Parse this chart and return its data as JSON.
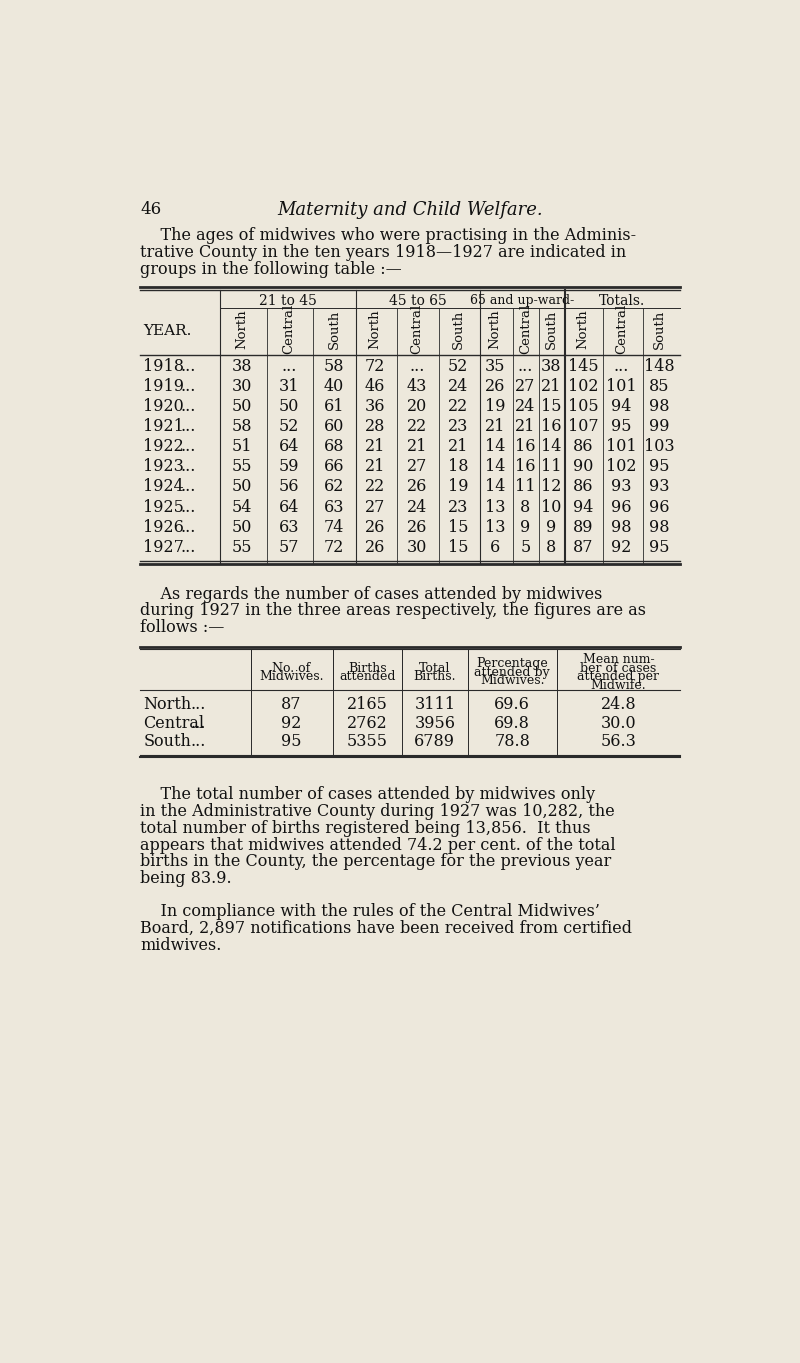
{
  "bg_color": "#ede8dc",
  "page_number": "46",
  "page_title": "Maternity and Child Welfare.",
  "intro_text_lines": [
    "    The ages of midwives who were practising in the Adminis-",
    "trative County in the ten years 1918—1927 are indicated in",
    "groups in the following table :—"
  ],
  "table1_group_headers": [
    "21 to 45",
    "45 to 65",
    "65 and up-ward-",
    "Totals."
  ],
  "table1_sub_headers": [
    "North",
    "Central",
    "South",
    "North",
    "Central",
    "South",
    "North",
    "Central",
    "South",
    "North",
    "Central",
    "South"
  ],
  "table1_rows": [
    [
      "1918",
      "...",
      "38",
      "...",
      "58",
      "72",
      "...",
      "52",
      "35",
      "...",
      "38",
      "145",
      "...",
      "148"
    ],
    [
      "1919",
      "...",
      "30",
      "31",
      "40",
      "46",
      "43",
      "24",
      "26",
      "27",
      "21",
      "102",
      "101",
      "85"
    ],
    [
      "1920",
      "...",
      "50",
      "50",
      "61",
      "36",
      "20",
      "22",
      "19",
      "24",
      "15",
      "105",
      "94",
      "98"
    ],
    [
      "1921",
      "...",
      "58",
      "52",
      "60",
      "28",
      "22",
      "23",
      "21",
      "21",
      "16",
      "107",
      "95",
      "99"
    ],
    [
      "1922",
      "...",
      "51",
      "64",
      "68",
      "21",
      "21",
      "21",
      "14",
      "16",
      "14",
      "86",
      "101",
      "103"
    ],
    [
      "1923",
      "...",
      "55",
      "59",
      "66",
      "21",
      "27",
      "18",
      "14",
      "16",
      "11",
      "90",
      "102",
      "95"
    ],
    [
      "1924",
      "...",
      "50",
      "56",
      "62",
      "22",
      "26",
      "19",
      "14",
      "11",
      "12",
      "86",
      "93",
      "93"
    ],
    [
      "1925",
      "...",
      "54",
      "64",
      "63",
      "27",
      "24",
      "23",
      "13",
      "8",
      "10",
      "94",
      "96",
      "96"
    ],
    [
      "1926",
      "...",
      "50",
      "63",
      "74",
      "26",
      "26",
      "15",
      "13",
      "9",
      "9",
      "89",
      "98",
      "98"
    ],
    [
      "1927",
      "...",
      "55",
      "57",
      "72",
      "26",
      "30",
      "15",
      "6",
      "5",
      "8",
      "87",
      "92",
      "95"
    ]
  ],
  "between_text_lines": [
    "    As regards the number of cases attended by midwives",
    "during 1927 in the three areas respectively, the figures are as",
    "follows :—"
  ],
  "table2_col_headers": [
    "No. of\nMidwives.",
    "Births\nattended",
    "Total\nBirths.",
    "Percentage\nattended by\nMidwives.",
    "Mean num-\nber of cases\nattended per\nMidwife."
  ],
  "table2_rows": [
    [
      "North",
      "...",
      "87",
      "2165",
      "3111",
      "69.6",
      "24.8"
    ],
    [
      "Central",
      "...",
      "92",
      "2762",
      "3956",
      "69.8",
      "30.0"
    ],
    [
      "South",
      "...",
      "95",
      "5355",
      "6789",
      "78.8",
      "56.3"
    ]
  ],
  "closing_text1_lines": [
    "    The total number of cases attended by midwives only",
    "in the Administrative County during 1927 was 10,282, the",
    "total number of births registered being 13,856.  It thus",
    "appears that midwives attended 74.2 per cent. of the total",
    "births in the County, the percentage for the previous year",
    "being 83.9."
  ],
  "closing_text2_lines": [
    "    In compliance with the rules of the Central Midwives’",
    "Board, 2,897 notifications have been received from certified",
    "midwives."
  ]
}
